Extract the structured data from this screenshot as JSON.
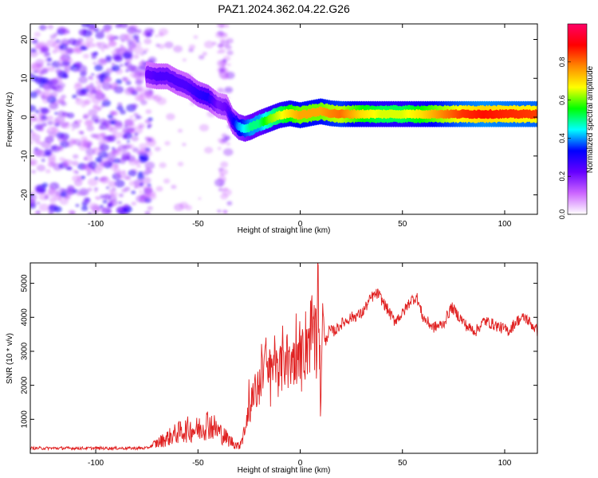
{
  "title": "PAZ1.2024.362.04.22.G26",
  "chart_data": [
    {
      "type": "heatmap",
      "xlabel": "Height of straight line (km)",
      "ylabel": "Frequency (Hz)",
      "xlim": [
        -132,
        116
      ],
      "ylim": [
        -25,
        24
      ],
      "x_ticks": [
        -100,
        -50,
        0,
        50,
        100
      ],
      "y_ticks": [
        -20,
        -10,
        0,
        10,
        20
      ],
      "colorbar": {
        "label": "Normalized spectral amplitude",
        "range": [
          0.0,
          1.0
        ],
        "ticks": [
          0.0,
          0.2,
          0.4,
          0.6,
          0.8
        ],
        "colormap": [
          "#ffffff",
          "#cc66ff",
          "#6600ff",
          "#0000ff",
          "#00ffff",
          "#00ff00",
          "#ffff00",
          "#ff8800",
          "#ff0000",
          "#ff0066"
        ]
      },
      "main_ridge": {
        "x": [
          -75,
          -70,
          -65,
          -60,
          -55,
          -50,
          -45,
          -40,
          -36,
          -33,
          -30,
          -27,
          -24,
          -20,
          -15,
          -10,
          -5,
          0,
          5,
          10,
          15,
          20,
          30,
          40,
          50,
          60,
          70,
          80,
          90,
          100,
          116
        ],
        "frequency": [
          11.0,
          10.5,
          10.5,
          9.0,
          8.0,
          6.0,
          5.0,
          3.0,
          2.5,
          -1.0,
          -2.5,
          -3.0,
          -2.5,
          -1.5,
          -0.5,
          0.5,
          1.0,
          0.5,
          1.0,
          1.5,
          1.0,
          0.8,
          0.8,
          0.8,
          0.8,
          0.8,
          0.8,
          0.8,
          0.8,
          0.8,
          0.8
        ],
        "amplitude": [
          0.22,
          0.25,
          0.25,
          0.25,
          0.25,
          0.28,
          0.3,
          0.2,
          0.22,
          0.3,
          0.4,
          0.45,
          0.5,
          0.5,
          0.6,
          0.65,
          0.7,
          0.75,
          0.75,
          0.75,
          0.78,
          0.8,
          0.7,
          0.65,
          0.65,
          0.7,
          0.78,
          0.85,
          0.88,
          0.86,
          0.84
        ]
      }
    },
    {
      "type": "line",
      "xlabel": "Height of straight line (km)",
      "ylabel": "SNR (10 * v/v)",
      "xlim": [
        -132,
        116
      ],
      "ylim": [
        0,
        5600
      ],
      "x_ticks": [
        -100,
        -50,
        0,
        50,
        100
      ],
      "y_ticks": [
        1000,
        2000,
        3000,
        4000,
        5000
      ],
      "color": "#e02020",
      "series": [
        {
          "x": [
            -132,
            -110,
            -90,
            -75,
            -70,
            -65,
            -60,
            -55,
            -50,
            -45,
            -40,
            -35,
            -30,
            -27,
            -24,
            -20,
            -18,
            -15,
            -12,
            -10,
            -8,
            -5,
            -2,
            0,
            3,
            6,
            8,
            9,
            10,
            11,
            12,
            14,
            17,
            20,
            25,
            30,
            35,
            38,
            42,
            46,
            50,
            54,
            57,
            60,
            65,
            70,
            74,
            78,
            82,
            86,
            90,
            94,
            98,
            102,
            106,
            110,
            113,
            116
          ],
          "y": [
            150,
            150,
            150,
            150,
            300,
            450,
            600,
            700,
            700,
            900,
            650,
            400,
            200,
            700,
            1500,
            2000,
            2800,
            2300,
            2900,
            2300,
            3000,
            2400,
            3200,
            2500,
            3300,
            3600,
            3000,
            5500,
            1000,
            4500,
            3200,
            3600,
            3600,
            3800,
            4000,
            4100,
            4600,
            4700,
            4300,
            3900,
            4100,
            4500,
            4600,
            4000,
            3700,
            3800,
            4300,
            4000,
            3700,
            3600,
            3900,
            3800,
            3700,
            3600,
            3900,
            4000,
            3800,
            3600
          ]
        }
      ]
    }
  ]
}
